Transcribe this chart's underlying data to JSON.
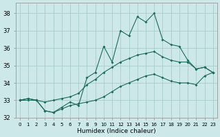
{
  "xlabel": "Humidex (Indice chaleur)",
  "background_color": "#cce8e8",
  "grid_color": "#aacccc",
  "line_color": "#1a6b5a",
  "xlim": [
    -0.5,
    23.5
  ],
  "ylim": [
    32,
    38.6
  ],
  "yticks": [
    32,
    33,
    34,
    35,
    36,
    37,
    38
  ],
  "xtick_labels": [
    "0",
    "1",
    "2",
    "3",
    "4",
    "5",
    "6",
    "7",
    "8",
    "9",
    "10",
    "11",
    "12",
    "13",
    "14",
    "15",
    "16",
    "17",
    "18",
    "19",
    "20",
    "21",
    "22",
    "23"
  ],
  "series": [
    {
      "x": [
        0,
        1,
        2,
        3,
        4,
        5,
        6,
        7,
        8,
        9,
        10,
        11,
        12,
        13,
        14,
        15,
        16,
        17,
        18,
        19,
        20,
        21,
        22,
        23
      ],
      "y": [
        33.0,
        33.1,
        33.0,
        32.4,
        32.3,
        32.6,
        32.9,
        32.7,
        34.3,
        34.6,
        36.1,
        35.2,
        37.0,
        36.7,
        37.8,
        37.5,
        38.0,
        36.5,
        36.2,
        36.1,
        35.3,
        34.8,
        34.9,
        34.6
      ]
    },
    {
      "x": [
        0,
        1,
        2,
        3,
        4,
        5,
        6,
        7,
        8,
        9,
        10,
        11,
        12,
        13,
        14,
        15,
        16,
        17,
        18,
        19,
        20,
        21,
        22,
        23
      ],
      "y": [
        33.0,
        33.1,
        33.0,
        32.9,
        33.0,
        33.1,
        33.2,
        33.4,
        33.9,
        34.2,
        34.6,
        34.9,
        35.2,
        35.4,
        35.6,
        35.7,
        35.8,
        35.5,
        35.3,
        35.2,
        35.2,
        34.8,
        34.9,
        34.6
      ]
    },
    {
      "x": [
        0,
        1,
        2,
        3,
        4,
        5,
        6,
        7,
        8,
        9,
        10,
        11,
        12,
        13,
        14,
        15,
        16,
        17,
        18,
        19,
        20,
        21,
        22,
        23
      ],
      "y": [
        33.0,
        33.0,
        33.0,
        32.4,
        32.3,
        32.5,
        32.7,
        32.8,
        32.9,
        33.0,
        33.2,
        33.5,
        33.8,
        34.0,
        34.2,
        34.4,
        34.5,
        34.3,
        34.1,
        34.0,
        34.0,
        33.9,
        34.4,
        34.6
      ]
    }
  ]
}
